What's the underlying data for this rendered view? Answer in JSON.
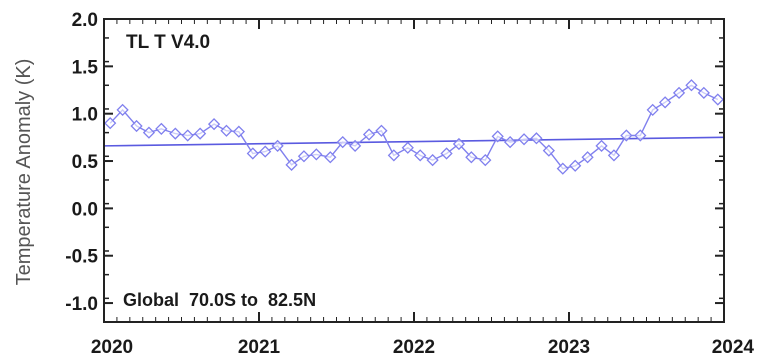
{
  "chart_data": {
    "type": "line",
    "title": "TL T V4.0",
    "subtitle": "Global  70.0S to  82.5N",
    "xlabel": "",
    "ylabel": "Temperature Anomaly (K)",
    "xlim": [
      2020,
      2024
    ],
    "ylim": [
      -1.2,
      2.0
    ],
    "xticks": [
      2020,
      2021,
      2022,
      2023,
      2024
    ],
    "xtick_labels": [
      "2020",
      "2021",
      "2022",
      "2023",
      "2024"
    ],
    "yticks": [
      2.0,
      1.5,
      1.0,
      0.5,
      0.0,
      -0.5,
      -1.0
    ],
    "ytick_labels": [
      "2.0",
      "1.5",
      "1.0",
      "0.5",
      "0.0",
      "-0.5",
      "-1.0"
    ],
    "grid": false,
    "colors": {
      "series": "#8080ee",
      "trend": "#5a5ae0",
      "axis": "#222222"
    },
    "series": [
      {
        "marker": "diamond",
        "x": [
          2020.04,
          2020.12,
          2020.21,
          2020.29,
          2020.37,
          2020.46,
          2020.54,
          2020.62,
          2020.71,
          2020.79,
          2020.87,
          2020.96,
          2021.04,
          2021.12,
          2021.21,
          2021.29,
          2021.37,
          2021.46,
          2021.54,
          2021.62,
          2021.71,
          2021.79,
          2021.87,
          2021.96,
          2022.04,
          2022.12,
          2022.21,
          2022.29,
          2022.37,
          2022.46,
          2022.54,
          2022.62,
          2022.71,
          2022.79,
          2022.87,
          2022.96,
          2023.04,
          2023.12,
          2023.21,
          2023.29,
          2023.37,
          2023.46,
          2023.54,
          2023.62,
          2023.71,
          2023.79,
          2023.87,
          2023.96
        ],
        "values": [
          0.9,
          1.04,
          0.87,
          0.8,
          0.84,
          0.79,
          0.77,
          0.79,
          0.89,
          0.82,
          0.81,
          0.58,
          0.6,
          0.66,
          0.46,
          0.55,
          0.57,
          0.54,
          0.7,
          0.66,
          0.78,
          0.82,
          0.56,
          0.64,
          0.56,
          0.51,
          0.58,
          0.68,
          0.54,
          0.51,
          0.76,
          0.7,
          0.73,
          0.74,
          0.61,
          0.42,
          0.45,
          0.54,
          0.66,
          0.56,
          0.77,
          0.77,
          1.04,
          1.12,
          1.22,
          1.3,
          1.22,
          1.15
        ]
      },
      {
        "type": "trend",
        "x": [
          2020.0,
          2024.0
        ],
        "values": [
          0.66,
          0.75
        ]
      }
    ]
  }
}
